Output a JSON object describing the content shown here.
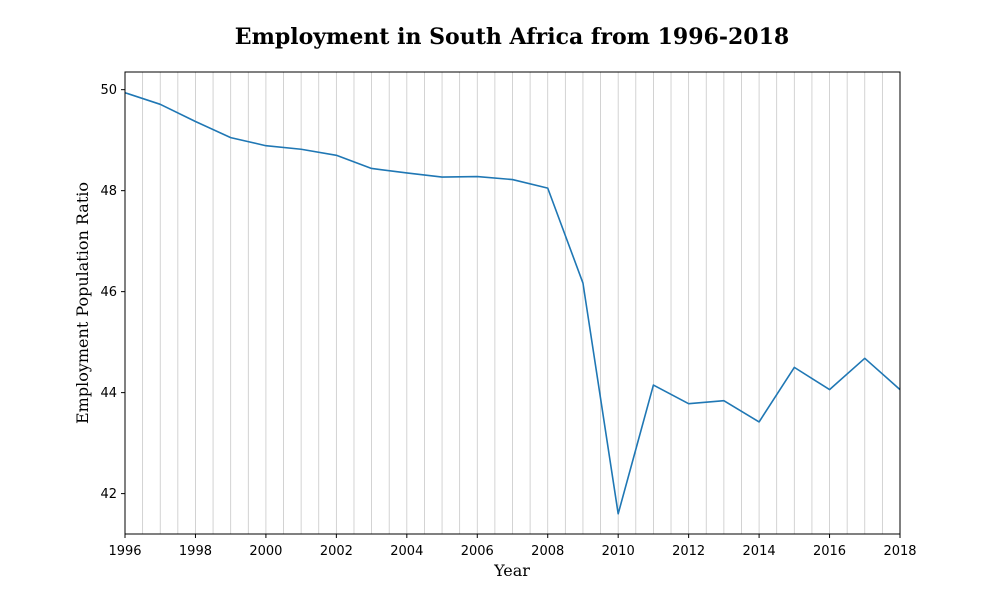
{
  "chart_data": {
    "type": "line",
    "title": "Employment in South Africa from 1996-2018",
    "xlabel": "Year",
    "ylabel": "Employment Population Ratio",
    "xlim": [
      1996,
      2018
    ],
    "ylim": [
      41.2,
      50.35
    ],
    "x_ticks": [
      1996,
      1998,
      2000,
      2002,
      2004,
      2006,
      2008,
      2010,
      2012,
      2014,
      2016,
      2018
    ],
    "y_ticks": [
      42,
      44,
      46,
      48,
      50
    ],
    "grid": "vertical minor gridlines every 0.5 year",
    "legend": "none",
    "series": [
      {
        "color": "#1f77b4",
        "x": [
          1996,
          1997,
          1998,
          1999,
          2000,
          2001,
          2002,
          2003,
          2004,
          2005,
          2006,
          2007,
          2008,
          2009,
          2010,
          2011,
          2012,
          2013,
          2014,
          2015,
          2016,
          2017,
          2018
        ],
        "y": [
          49.94,
          49.71,
          49.37,
          49.05,
          48.89,
          48.82,
          48.7,
          48.44,
          48.35,
          48.27,
          48.28,
          48.22,
          48.05,
          46.17,
          41.6,
          44.15,
          43.78,
          43.84,
          43.42,
          44.5,
          44.06,
          44.68,
          44.06
        ]
      }
    ]
  }
}
